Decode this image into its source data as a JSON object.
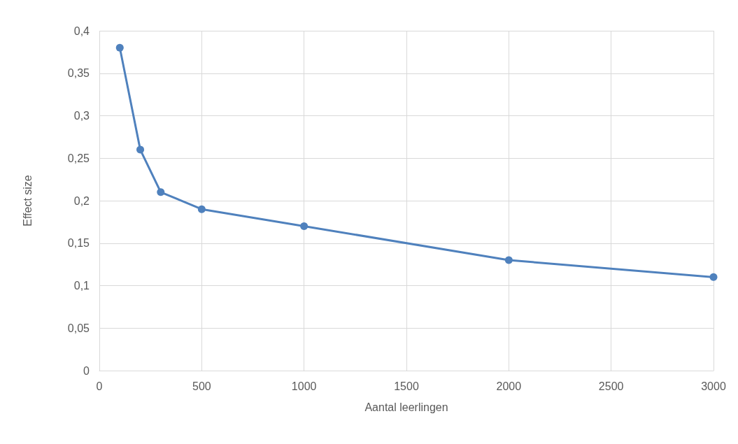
{
  "chart_data": {
    "type": "line",
    "xlabel": "Aantal leerlingen",
    "ylabel": "Effect size",
    "x": [
      100,
      200,
      300,
      500,
      1000,
      2000,
      3000
    ],
    "series": [
      {
        "color": "#4f81bd",
        "values": [
          0.38,
          0.26,
          0.21,
          0.19,
          0.17,
          0.13,
          0.11
        ]
      }
    ],
    "xlim": [
      0,
      3000
    ],
    "xticks": [
      0,
      500,
      1000,
      1500,
      2000,
      2500,
      3000
    ],
    "ylim": [
      0,
      0.4
    ],
    "yticks": [
      0,
      {
        "value": 0.05,
        "label": "0,05"
      },
      {
        "value": 0.1,
        "label": "0,1"
      },
      {
        "value": 0.15,
        "label": "0,15"
      },
      {
        "value": 0.2,
        "label": "0,2"
      },
      {
        "value": 0.25,
        "label": "0,25"
      },
      {
        "value": 0.3,
        "label": "0,3"
      },
      {
        "value": 0.35,
        "label": "0,35"
      },
      {
        "value": 0.4,
        "label": "0,4"
      }
    ],
    "grid": true,
    "marker": "circle",
    "line_style": "solid"
  }
}
